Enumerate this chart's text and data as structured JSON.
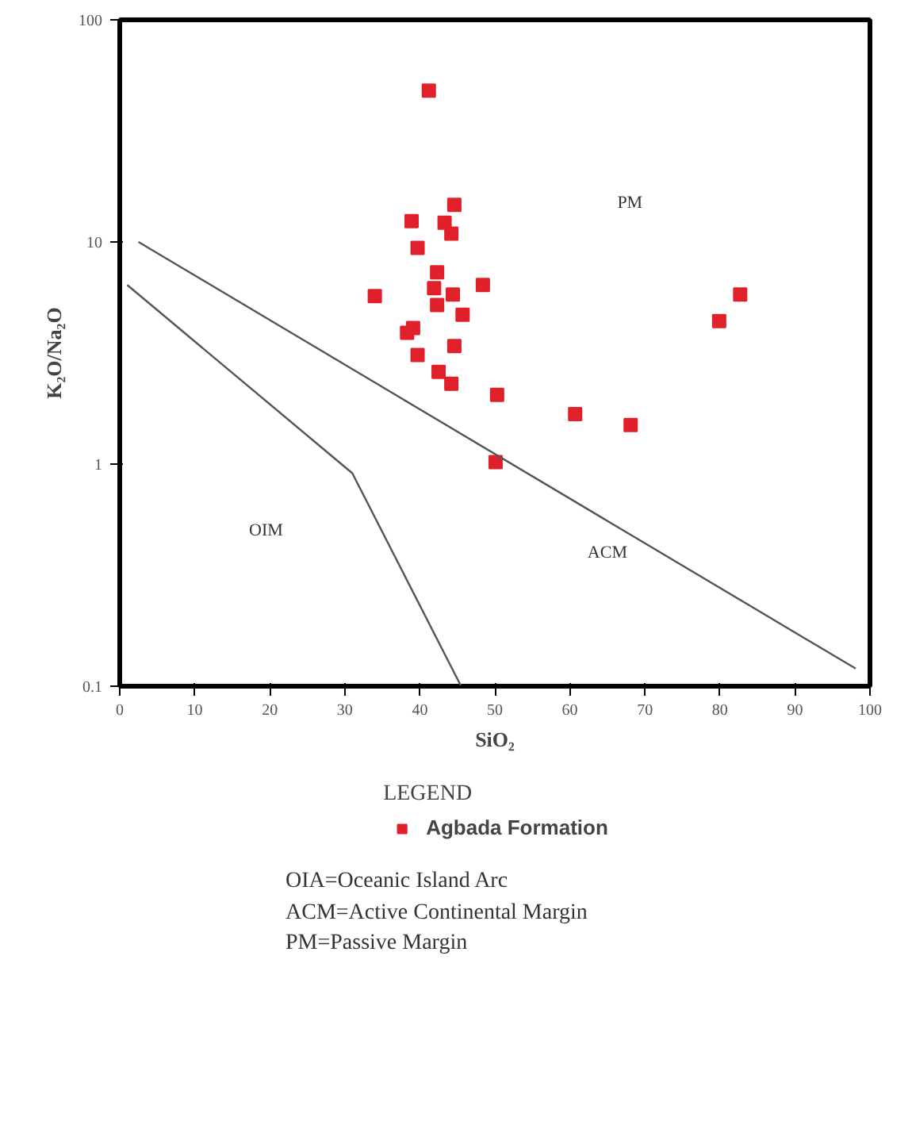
{
  "chart_data": {
    "type": "scatter",
    "xlabel": "SiO₂",
    "ylabel": "K₂O/Na₂O",
    "legend_title": "LEGEND",
    "log": "y",
    "grid": false,
    "legend": "bottom",
    "xlim": [
      0,
      100
    ],
    "ylim": [
      0.1,
      100
    ],
    "xticks": [
      0,
      10,
      20,
      30,
      40,
      50,
      60,
      70,
      80,
      90,
      100
    ],
    "yticks": [
      0.1,
      1,
      10,
      100
    ],
    "series": [
      {
        "name": "Agbada Formation",
        "color": "#e0202a",
        "marker": "square",
        "x": [
          41.2,
          44.6,
          38.9,
          43.3,
          44.2,
          39.7,
          42.3,
          48.4,
          41.9,
          44.4,
          34,
          42.3,
          45.7,
          79.9,
          82.7,
          39.1,
          38.3,
          44.6,
          39.7,
          42.5,
          44.2,
          50.3,
          60.7,
          68.1,
          50.1
        ],
        "values": [
          48,
          14.7,
          12.4,
          12.2,
          10.9,
          9.4,
          7.3,
          6.4,
          6.2,
          5.8,
          5.7,
          5.2,
          4.7,
          4.4,
          5.8,
          4.1,
          3.9,
          3.4,
          3.1,
          2.6,
          2.3,
          2.05,
          1.68,
          1.5,
          1.02
        ]
      },
      {
        "type": "line",
        "color": "#555555",
        "x": [
          2.5,
          98.1
        ],
        "values": [
          10,
          0.12
        ]
      },
      {
        "type": "line",
        "color": "#555555",
        "x": [
          1,
          31,
          45.5
        ],
        "values": [
          6.4,
          0.91,
          0.1
        ]
      }
    ],
    "annotations": [
      "PM",
      "OIM",
      "ACM",
      "OIA=Oceanic Island Arc",
      "ACM=Active Continental Margin",
      "PM=Passive Margin"
    ]
  }
}
